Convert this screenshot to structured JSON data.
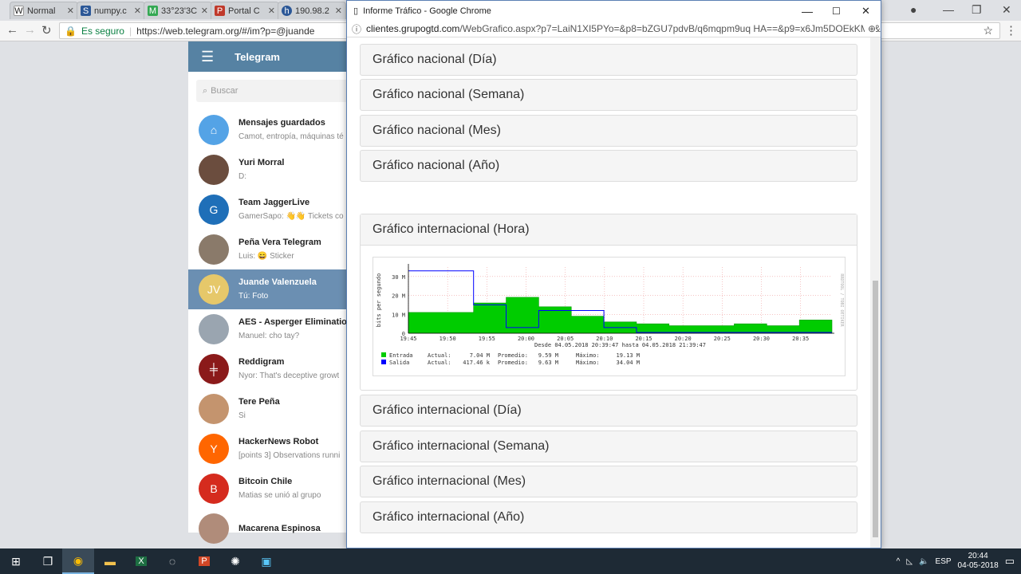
{
  "browser": {
    "tabs": [
      {
        "label": "Normal",
        "icon": "W",
        "icon_bg": "#ffffff",
        "icon_color": "#000"
      },
      {
        "label": "numpy.c",
        "icon": "S",
        "icon_bg": "#2b5797",
        "icon_color": "#fff"
      },
      {
        "label": "33°23'3C",
        "icon": "M",
        "icon_bg": "#34a853",
        "icon_color": "#fff"
      },
      {
        "label": "Portal C",
        "icon": "P",
        "icon_bg": "#c0392b",
        "icon_color": "#fff"
      },
      {
        "label": "190.98.2",
        "icon": "h",
        "icon_bg": "#2b5797",
        "icon_color": "#fff"
      }
    ],
    "secure_label": "Es seguro",
    "url": "https://web.telegram.org/#/im?p=@juande"
  },
  "telegram": {
    "title": "Telegram",
    "search_placeholder": "Buscar",
    "chats": [
      {
        "name": "Mensajes guardados",
        "preview": "Camot, entropía, máquinas té",
        "avatar_text": "⌂",
        "avatar_color": "#54a3e6"
      },
      {
        "name": "Yuri Morral",
        "preview": "D:",
        "avatar_text": "",
        "avatar_color": "#6b4d3e"
      },
      {
        "name": "Team JaggerLive",
        "preview": "GamerSapo: 👋👋 Tickets co",
        "avatar_text": "G",
        "avatar_color": "#1f6fb8"
      },
      {
        "name": "Peña Vera Telegram",
        "preview": "Luis: 😄 Sticker",
        "avatar_text": "",
        "avatar_color": "#8a7a6a"
      },
      {
        "name": "Juande Valenzuela",
        "preview": "Tú: Foto",
        "avatar_text": "JV",
        "avatar_color": "#e6c86a"
      },
      {
        "name": "AES - Asperger Eliminatio",
        "preview": "Manuel: cho tay?",
        "avatar_text": "",
        "avatar_color": "#9aa5b0"
      },
      {
        "name": "Reddigram",
        "preview": "Nyor: That's deceptive growt",
        "avatar_text": "╪",
        "avatar_color": "#8b1a1a"
      },
      {
        "name": "Tere Peña",
        "preview": "Si",
        "avatar_text": "",
        "avatar_color": "#c4946e"
      },
      {
        "name": "HackerNews Robot",
        "preview": "[points 3] Observations runni",
        "avatar_text": "Y",
        "avatar_color": "#ff6600"
      },
      {
        "name": "Bitcoin Chile",
        "preview": "Matias se unió al grupo",
        "avatar_text": "B",
        "avatar_color": "#d52b1e"
      },
      {
        "name": "Macarena Espinosa",
        "preview": "",
        "avatar_text": "",
        "avatar_color": "#b08c7a"
      }
    ],
    "active_index": 4
  },
  "popup": {
    "window_title": "Informe Tráfico - Google Chrome",
    "url_domain": "clientes.grupogtd.com",
    "url_path": "/WebGrafico.aspx?p7=LaiN1XI5PYo=&p8=bZGU7pdvB/q6mqpm9uq HA==&p9=x6Jm5DOEkKM=&p1",
    "panels_top": [
      "Gráfico nacional (Día)",
      "Gráfico nacional (Semana)",
      "Gráfico nacional (Mes)",
      "Gráfico nacional (Año)"
    ],
    "chart_panel_title": "Gráfico internacional (Hora)",
    "panels_bottom": [
      "Gráfico internacional (Día)",
      "Gráfico internacional (Semana)",
      "Gráfico internacional (Mes)",
      "Gráfico internacional (Año)"
    ]
  },
  "chart_data": {
    "type": "area",
    "ylabel": "bits per segundo",
    "y_ticks": [
      "0",
      "10 M",
      "20 M",
      "30 M"
    ],
    "ylim": [
      0,
      35
    ],
    "x_ticks": [
      "19:45",
      "19:50",
      "19:55",
      "20:00",
      "20:05",
      "20:10",
      "20:15",
      "20:20",
      "20:25",
      "20:30",
      "20:35"
    ],
    "right_label": "RRDTOOL / TOBI OETIKER",
    "subtitle": "Desde 04.05.2018 20:39:47 hasta 04.05.2018 21:39:47",
    "series": [
      {
        "name": "Entrada",
        "color": "#00cc00",
        "values": [
          11,
          11,
          16,
          19,
          14,
          9,
          6,
          5,
          4,
          4,
          5,
          4,
          7
        ]
      },
      {
        "name": "Salida",
        "color": "#0000ff",
        "values": [
          33,
          33,
          15,
          3,
          12,
          12,
          3,
          0.4,
          0.4,
          0.4,
          0.4,
          0.4,
          0.4
        ]
      }
    ],
    "legend": [
      {
        "name": "Entrada",
        "color": "#00cc00",
        "actual_label": "Actual:",
        "actual": "7.04 M",
        "avg_label": "Promedio:",
        "avg": "9.59 M",
        "max_label": "Máximo:",
        "max": "19.13 M"
      },
      {
        "name": "Salida",
        "color": "#0000ff",
        "actual_label": "Actual:",
        "actual": "417.46 k",
        "avg_label": "Promedio:",
        "avg": "9.63 M",
        "max_label": "Máximo:",
        "max": "34.04 M"
      }
    ]
  },
  "taskbar": {
    "lang": "ESP",
    "time": "20:44",
    "date": "04-05-2018"
  }
}
